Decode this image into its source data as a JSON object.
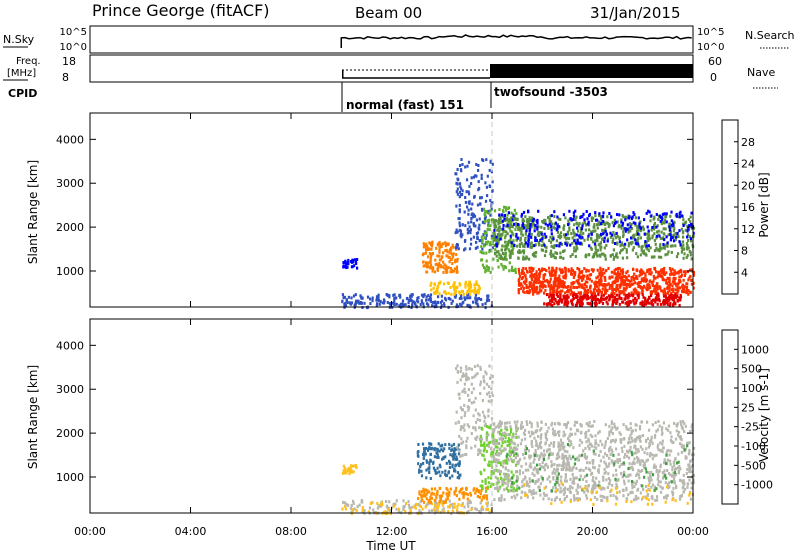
{
  "header": {
    "station": "Prince George (fitACF)",
    "beam": "Beam 00",
    "date": "31/Jan/2015"
  },
  "panels": {
    "nsky_label": "N.Sky",
    "nsky_ticks": [
      "10^5",
      "10^0"
    ],
    "nsearch_label": "N.Search",
    "nsearch_ticks": [
      "10^5",
      "10^0"
    ],
    "freq_label_line1": "Freq.",
    "freq_label_line2": "[MHz]",
    "freq_ticks": [
      "18",
      "8"
    ],
    "nave_label": "Nave",
    "nave_ticks": [
      "60",
      "0"
    ],
    "cpid_label": "CPID",
    "cpid_modes": [
      "normal (fast) 151",
      "twofsound -3503"
    ]
  },
  "colors": {
    "power": [
      "#0000ff",
      "#3050c0",
      "#5a9040",
      "#60b030",
      "#a0d020",
      "#e0e000",
      "#ffc000",
      "#ff8000",
      "#ff3000",
      "#e00000"
    ],
    "velocity": [
      "#ff0000",
      "#ff5a00",
      "#ff9000",
      "#ffc020",
      "#b8b8b0",
      "#b8b8b0",
      "#70d030",
      "#40a040",
      "#3070a0",
      "#2040b0"
    ]
  },
  "chart_data": [
    {
      "type": "heatmap",
      "name": "power",
      "ylabel": "Slant Range [km]",
      "yticks": [
        1000,
        2000,
        3000,
        4000
      ],
      "ylim": [
        180,
        4600
      ],
      "xlim_hours": [
        0,
        24
      ],
      "colorbar_label": "Power [dB]",
      "colorbar_ticks": [
        "4",
        "8",
        "12",
        "16",
        "20",
        "24",
        "28"
      ],
      "clim": [
        0,
        30
      ]
    },
    {
      "type": "heatmap",
      "name": "velocity",
      "ylabel": "Slant Range [km]",
      "yticks": [
        1000,
        2000,
        3000,
        4000
      ],
      "ylim": [
        180,
        4600
      ],
      "xlim_hours": [
        0,
        24
      ],
      "colorbar_label": "Velocity [m s-1]",
      "colorbar_ticks": [
        "-1000",
        "-500",
        "-100",
        "-25",
        "25",
        "100",
        "500",
        "1000"
      ]
    }
  ],
  "xaxis": {
    "label": "Time UT",
    "ticks": [
      "00:00",
      "04:00",
      "08:00",
      "12:00",
      "16:00",
      "20:00",
      "00:00"
    ]
  }
}
